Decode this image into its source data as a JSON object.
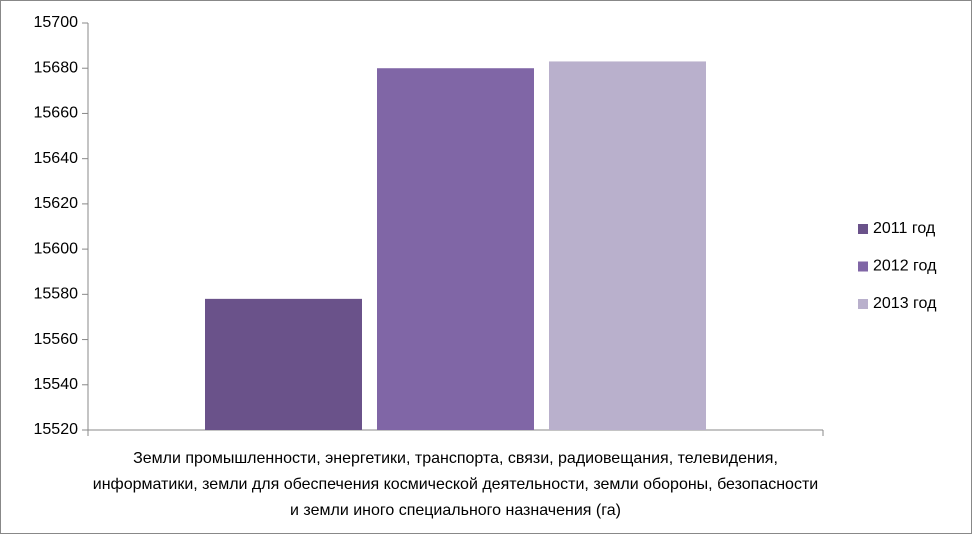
{
  "chart_data": {
    "type": "bar",
    "categories": [
      "Земли промышленности, энергетики, транспорта, связи, радиовещания, телевидения, информатики, земли для обеспечения космической деятельности, земли обороны, безопасности и земли иного специального назначения (га)"
    ],
    "series": [
      {
        "name": "2011 год",
        "color": "#6a528a",
        "values": [
          15578
        ]
      },
      {
        "name": "2012 год",
        "color": "#8066a6",
        "values": [
          15680
        ]
      },
      {
        "name": "2013 год",
        "color": "#b9b0cc",
        "values": [
          15683
        ]
      }
    ],
    "ylim": [
      15520,
      15700
    ],
    "yticks": [
      15520,
      15540,
      15560,
      15580,
      15600,
      15620,
      15640,
      15660,
      15680,
      15700
    ],
    "grid": false,
    "legend": "right"
  }
}
